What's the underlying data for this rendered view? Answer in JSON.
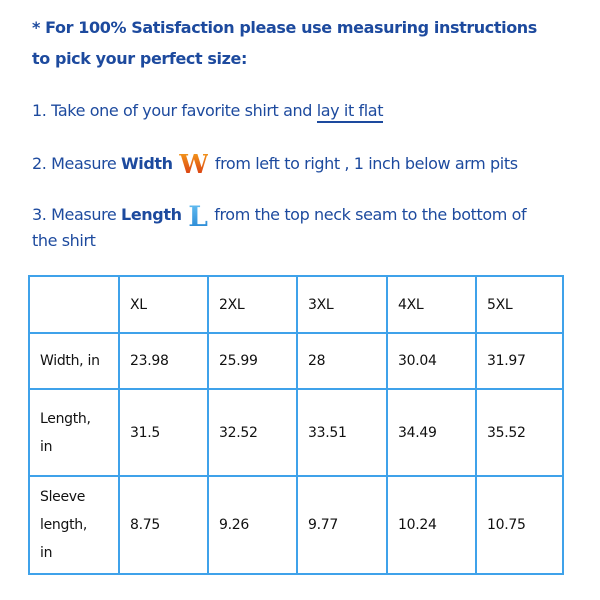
{
  "intro": {
    "line1": "* For 100% Satisfaction please use measuring instructions",
    "line2": "to pick your perfect size:"
  },
  "steps": [
    {
      "prefix": "1. Take one of your favorite shirt and ",
      "link": "lay it flat"
    },
    {
      "prefix": "2. Measure ",
      "bold": "Width",
      "letter": "W",
      "suffix": " from left to right , 1 inch below arm pits"
    },
    {
      "prefix": "3. Measure ",
      "bold": "Length",
      "letter": "L",
      "suffix": " from the top neck seam to the bottom of",
      "cont": "the shirt"
    }
  ],
  "table": {
    "headers": [
      "",
      "XL",
      "2XL",
      "3XL",
      "4XL",
      "5XL"
    ],
    "rows": [
      {
        "label": "Width, in",
        "values": [
          "23.98",
          "25.99",
          "28",
          "30.04",
          "31.97"
        ]
      },
      {
        "label": "Length, in",
        "values": [
          "31.5",
          "32.52",
          "33.51",
          "34.49",
          "35.52"
        ]
      },
      {
        "label": "Sleeve length, in",
        "values": [
          "8.75",
          "9.26",
          "9.77",
          "10.24",
          "10.75"
        ]
      }
    ]
  },
  "colors": {
    "text": "#1d4a9e",
    "border": "#3fa2ea"
  }
}
